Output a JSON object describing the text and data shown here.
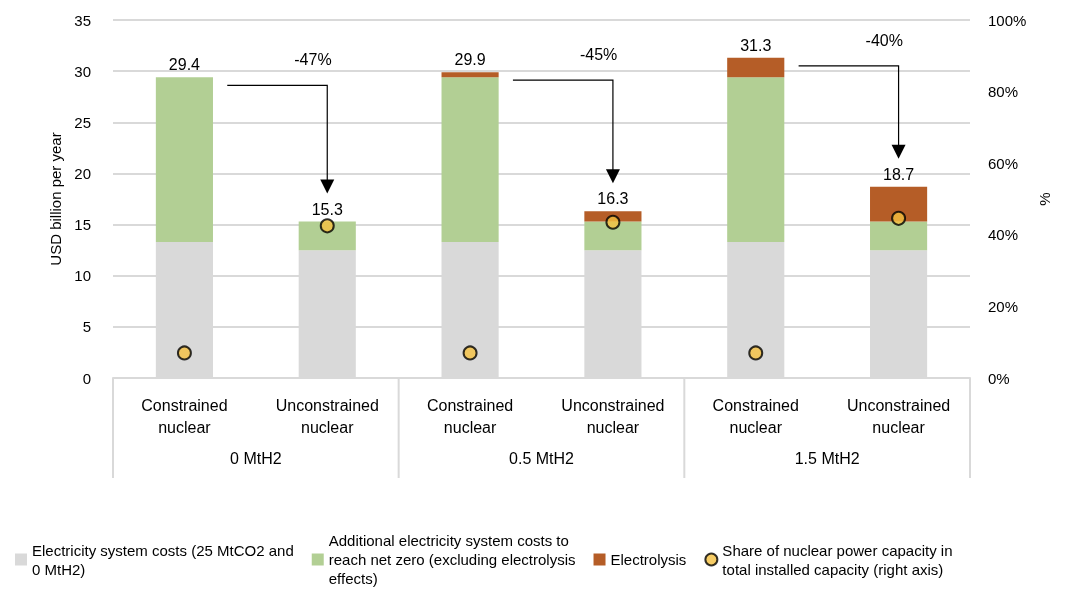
{
  "chart_data": {
    "type": "bar",
    "stacked": true,
    "ylabel": "USD billion per year",
    "y2label": "%",
    "categories": [
      "Constrained nuclear",
      "Unconstrained nuclear",
      "Constrained nuclear",
      "Unconstrained nuclear",
      "Constrained nuclear",
      "Unconstrained nuclear"
    ],
    "series": [
      {
        "name": "Electricity system costs (25 MtCO2 and 0 MtH2)",
        "color": "#d9d9d9",
        "values": [
          13.3,
          12.5,
          13.3,
          12.5,
          13.3,
          12.5
        ]
      },
      {
        "name": "Additional electricity system costs to reach net zero (excluding electrolysis effects)",
        "color": "#b2cf94",
        "values": [
          16.1,
          2.8,
          16.1,
          2.8,
          16.1,
          2.8
        ]
      },
      {
        "name": "Electrolysis",
        "color": "#b55d27",
        "values": [
          null,
          null,
          0.5,
          1.0,
          1.9,
          3.4
        ]
      },
      {
        "name": "Share of nuclear power capacity in total installed capacity (right axis)",
        "type": "scatter",
        "axis": "y2",
        "color": "#f5c040",
        "values": [
          7,
          42.5,
          7,
          43.5,
          7,
          44.6
        ]
      }
    ],
    "totals": [
      "29.4",
      "15.3",
      "29.9",
      "16.3",
      "31.3",
      "18.7"
    ],
    "annotations": [
      "0 MtH2",
      "0.5 MtH2",
      "1.5 MtH2",
      "-47%",
      "-45%",
      "-40%"
    ],
    "ylim": [
      0,
      35
    ],
    "yticks": [
      0,
      5,
      10,
      15,
      20,
      25,
      30,
      35
    ],
    "y2lim": [
      0,
      100
    ],
    "y2ticks": [
      {
        "value": 0,
        "label": "0%"
      },
      {
        "value": 20,
        "label": "20%"
      },
      {
        "value": 40,
        "label": "40%"
      },
      {
        "value": 60,
        "label": "60%"
      },
      {
        "value": 80,
        "label": "80%"
      },
      {
        "value": 100,
        "label": "100%"
      }
    ],
    "grid": "y",
    "legend": "bottom",
    "marker": "circle"
  }
}
